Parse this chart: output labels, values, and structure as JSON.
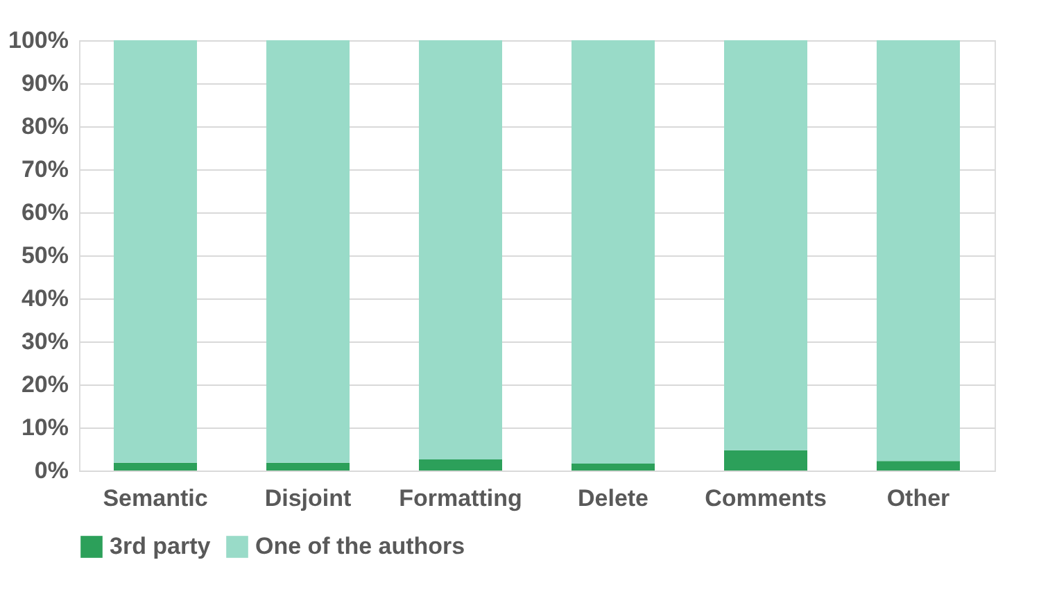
{
  "chart_data": {
    "type": "bar",
    "stacked": true,
    "categories": [
      "Semantic",
      "Disjoint",
      "Formatting",
      "Delete",
      "Comments",
      "Other"
    ],
    "series": [
      {
        "name": "3rd party",
        "color": "#2ca05a",
        "values": [
          1.8,
          1.8,
          2.6,
          1.6,
          4.7,
          2.2
        ]
      },
      {
        "name": "One of the authors",
        "color": "#99dbc8",
        "values": [
          98.2,
          98.2,
          97.4,
          98.4,
          95.3,
          97.8
        ]
      }
    ],
    "ylim": [
      0,
      100
    ],
    "yticks": [
      {
        "value": 0,
        "label": "0%"
      },
      {
        "value": 10,
        "label": "10%"
      },
      {
        "value": 20,
        "label": "20%"
      },
      {
        "value": 30,
        "label": "30%"
      },
      {
        "value": 40,
        "label": "40%"
      },
      {
        "value": 50,
        "label": "50%"
      },
      {
        "value": 60,
        "label": "60%"
      },
      {
        "value": 70,
        "label": "70%"
      },
      {
        "value": 80,
        "label": "80%"
      },
      {
        "value": 90,
        "label": "90%"
      },
      {
        "value": 100,
        "label": "100%"
      }
    ],
    "grid": "y",
    "legend": "bottom"
  }
}
